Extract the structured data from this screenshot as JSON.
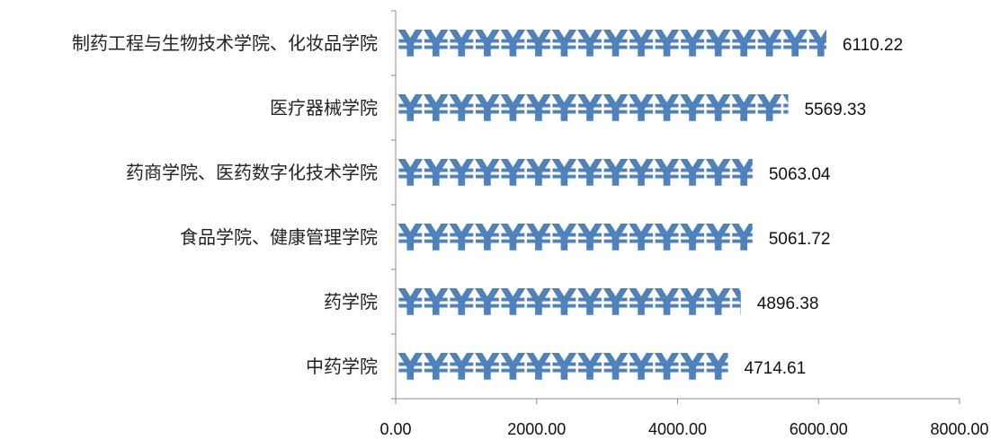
{
  "chart_data": {
    "type": "bar",
    "orientation": "horizontal",
    "bar_symbol": "¥",
    "bar_color": "#4f81bd",
    "categories": [
      "制药工程与生物技术学院、化妆品学院",
      "医疗器械学院",
      "药商学院、医药数字化技术学院",
      "食品学院、健康管理学院",
      "药学院",
      "中药学院"
    ],
    "values": [
      6110.22,
      5569.33,
      5063.04,
      5061.72,
      4896.38,
      4714.61
    ],
    "value_labels": [
      "6110.22",
      "5569.33",
      "5063.04",
      "5061.72",
      "4896.38",
      "4714.61"
    ],
    "xlim": [
      0,
      8000
    ],
    "x_ticks": [
      "0.00",
      "2000.00",
      "4000.00",
      "6000.00",
      "8000.00"
    ],
    "grid": false,
    "legend": "none",
    "title": "",
    "xlabel": "",
    "ylabel": ""
  }
}
